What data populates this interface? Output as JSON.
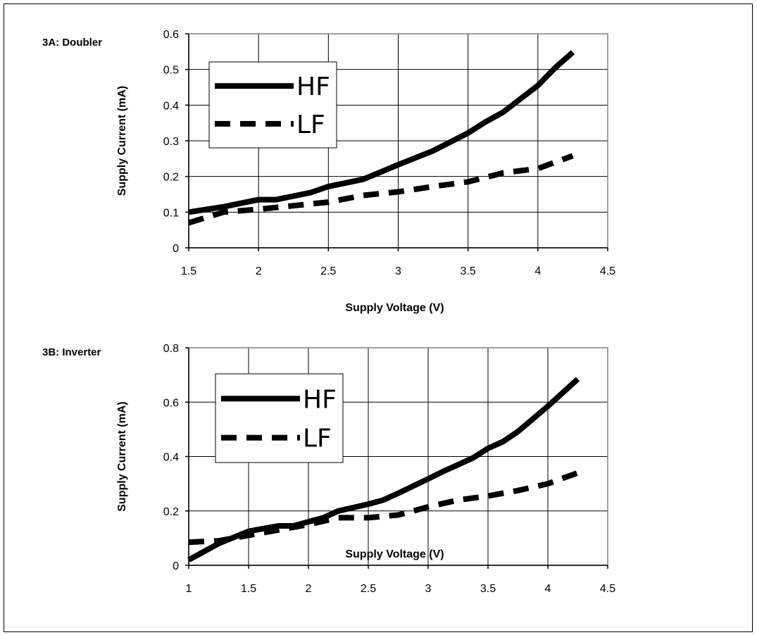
{
  "chart_data": [
    {
      "type": "line",
      "panel_label": "3A: Doubler",
      "xlabel": "Supply Voltage (V)",
      "ylabel": "Supply  Current (mA)",
      "xlim": [
        1.5,
        4.5
      ],
      "ylim": [
        0,
        0.6
      ],
      "xticks": [
        1.5,
        2,
        2.5,
        3,
        3.5,
        4,
        4.5
      ],
      "yticks": [
        0,
        0.1,
        0.2,
        0.3,
        0.4,
        0.5,
        0.6
      ],
      "xtick_labels": [
        "1.5",
        "2",
        "2.5",
        "3",
        "3.5",
        "4",
        "4.5"
      ],
      "ytick_labels": [
        "0",
        "0.1",
        "0.2",
        "0.3",
        "0.4",
        "0.5",
        "0.6"
      ],
      "grid": true,
      "legend": "top-left",
      "series": [
        {
          "name": "HF",
          "style": "solid",
          "x": [
            1.5,
            1.75,
            2.0,
            2.125,
            2.375,
            2.5,
            2.75,
            3.0,
            3.25,
            3.5,
            3.625,
            3.75,
            4.0,
            4.125,
            4.25
          ],
          "y": [
            0.1,
            0.115,
            0.135,
            0.135,
            0.155,
            0.172,
            0.192,
            0.233,
            0.272,
            0.322,
            0.353,
            0.38,
            0.455,
            0.505,
            0.548
          ]
        },
        {
          "name": "LF",
          "style": "dashed",
          "x": [
            1.5,
            1.75,
            2.0,
            2.25,
            2.5,
            2.75,
            3.0,
            3.25,
            3.5,
            3.75,
            4.0,
            4.25
          ],
          "y": [
            0.07,
            0.1,
            0.108,
            0.118,
            0.128,
            0.147,
            0.157,
            0.172,
            0.185,
            0.21,
            0.222,
            0.258
          ]
        }
      ]
    },
    {
      "type": "line",
      "panel_label": "3B: Inverter",
      "xlabel": "Supply Voltage (V)",
      "ylabel": "Supply  Current (mA)",
      "xlim": [
        1,
        4.5
      ],
      "ylim": [
        0,
        0.8
      ],
      "xticks": [
        1,
        1.5,
        2,
        2.5,
        3,
        3.5,
        4,
        4.5
      ],
      "yticks": [
        0,
        0.2,
        0.4,
        0.6,
        0.8
      ],
      "xtick_labels": [
        "1",
        "1.5",
        "2",
        "2.5",
        "3",
        "3.5",
        "4",
        "4.5"
      ],
      "ytick_labels": [
        "0",
        "0.2",
        "0.4",
        "0.6",
        "0.8"
      ],
      "grid": true,
      "legend": "top-left",
      "series": [
        {
          "name": "HF",
          "style": "solid",
          "x": [
            1.0,
            1.25,
            1.5,
            1.75,
            1.875,
            2.0,
            2.125,
            2.25,
            2.5,
            2.625,
            2.75,
            3.0,
            3.125,
            3.25,
            3.375,
            3.5,
            3.625,
            3.75,
            4.0,
            4.25
          ],
          "y": [
            0.02,
            0.08,
            0.125,
            0.145,
            0.145,
            0.16,
            0.175,
            0.2,
            0.225,
            0.24,
            0.265,
            0.318,
            0.345,
            0.37,
            0.395,
            0.43,
            0.455,
            0.492,
            0.585,
            0.685
          ]
        },
        {
          "name": "LF",
          "style": "dashed",
          "x": [
            1.0,
            1.25,
            1.5,
            1.75,
            2.0,
            2.25,
            2.5,
            2.75,
            3.0,
            3.25,
            3.5,
            3.75,
            4.0,
            4.25
          ],
          "y": [
            0.085,
            0.09,
            0.11,
            0.13,
            0.15,
            0.175,
            0.175,
            0.185,
            0.215,
            0.24,
            0.255,
            0.275,
            0.3,
            0.34
          ]
        }
      ]
    }
  ]
}
